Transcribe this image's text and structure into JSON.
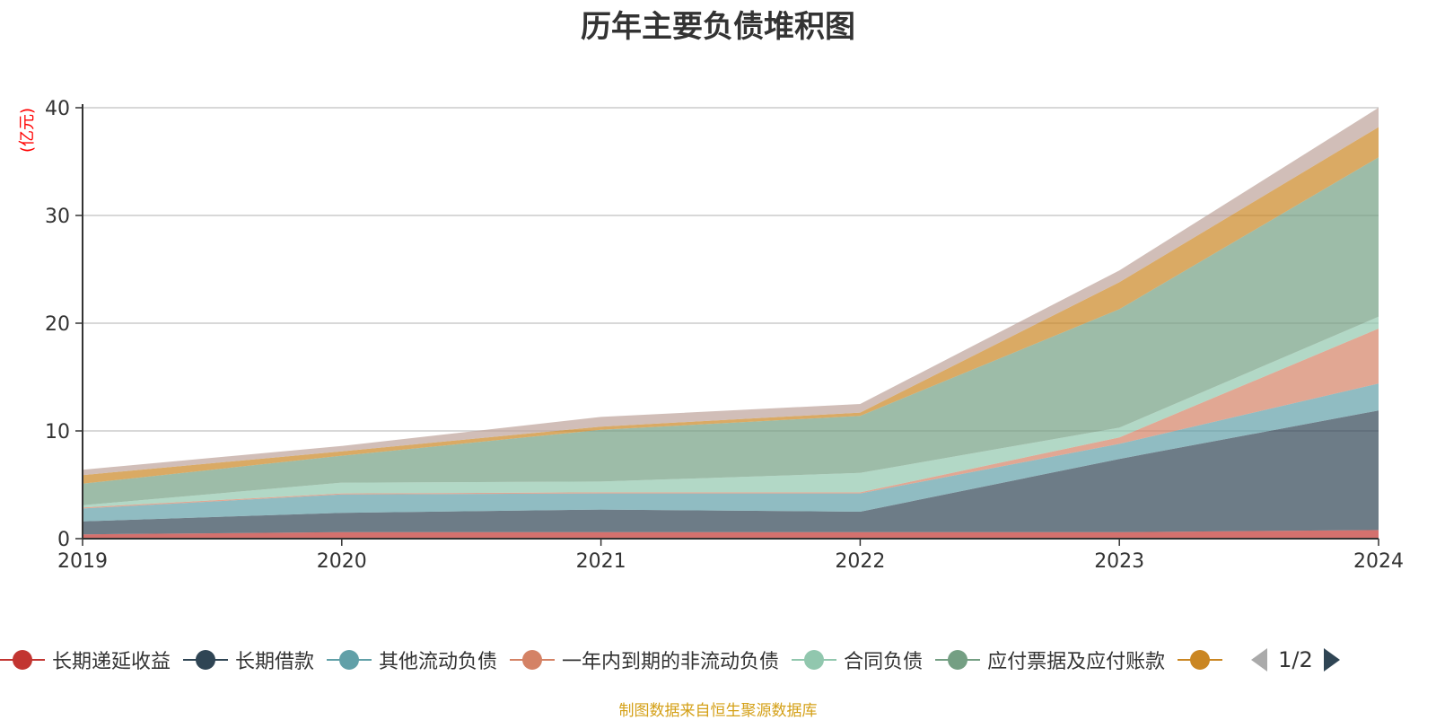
{
  "chart_data": {
    "type": "area",
    "stacked": true,
    "title": "历年主要负债堆积图",
    "ylabel": "(亿元)",
    "ylim": [
      0,
      40
    ],
    "yticks": [
      0,
      10,
      20,
      30,
      40
    ],
    "grid": true,
    "legend_position": "bottom",
    "categories": [
      "2019",
      "2020",
      "2021",
      "2022",
      "2023",
      "2024"
    ],
    "series": [
      {
        "name": "长期递延收益",
        "color": "#c23531",
        "values": [
          0.4,
          0.6,
          0.6,
          0.6,
          0.6,
          0.8
        ]
      },
      {
        "name": "长期借款",
        "color": "#2f4554",
        "values": [
          1.2,
          1.8,
          2.1,
          1.9,
          6.8,
          11.1
        ]
      },
      {
        "name": "其他流动负债",
        "color": "#61a0a8",
        "values": [
          1.2,
          1.7,
          1.5,
          1.7,
          1.4,
          2.5
        ]
      },
      {
        "name": "一年内到期的非流动负债",
        "color": "#d48265",
        "values": [
          0.1,
          0.1,
          0.1,
          0.1,
          0.6,
          5.1
        ]
      },
      {
        "name": "合同负债",
        "color": "#91c7ae",
        "values": [
          0.2,
          1.0,
          1.0,
          1.8,
          0.9,
          1.1
        ]
      },
      {
        "name": "应付票据及应付账款",
        "color": "#749f83",
        "values": [
          2.0,
          2.5,
          4.8,
          5.3,
          11.0,
          14.8
        ]
      },
      {
        "name": "",
        "color": "#ca8622",
        "values": [
          0.8,
          0.4,
          0.3,
          0.3,
          2.5,
          2.8
        ]
      },
      {
        "name": "",
        "color": "#bda29a",
        "values": [
          0.5,
          0.5,
          0.9,
          0.8,
          1.1,
          1.8
        ]
      }
    ]
  },
  "legend": {
    "page_text": "1/2"
  },
  "footer": {
    "source": "制图数据来自恒生聚源数据库"
  },
  "colors": {
    "axis": "#333333",
    "grid": "#cccccc",
    "ylabel": "#ff0000",
    "footer": "#d4a017",
    "pager_active": "#2f4554",
    "pager_inactive": "#aaaaaa"
  }
}
